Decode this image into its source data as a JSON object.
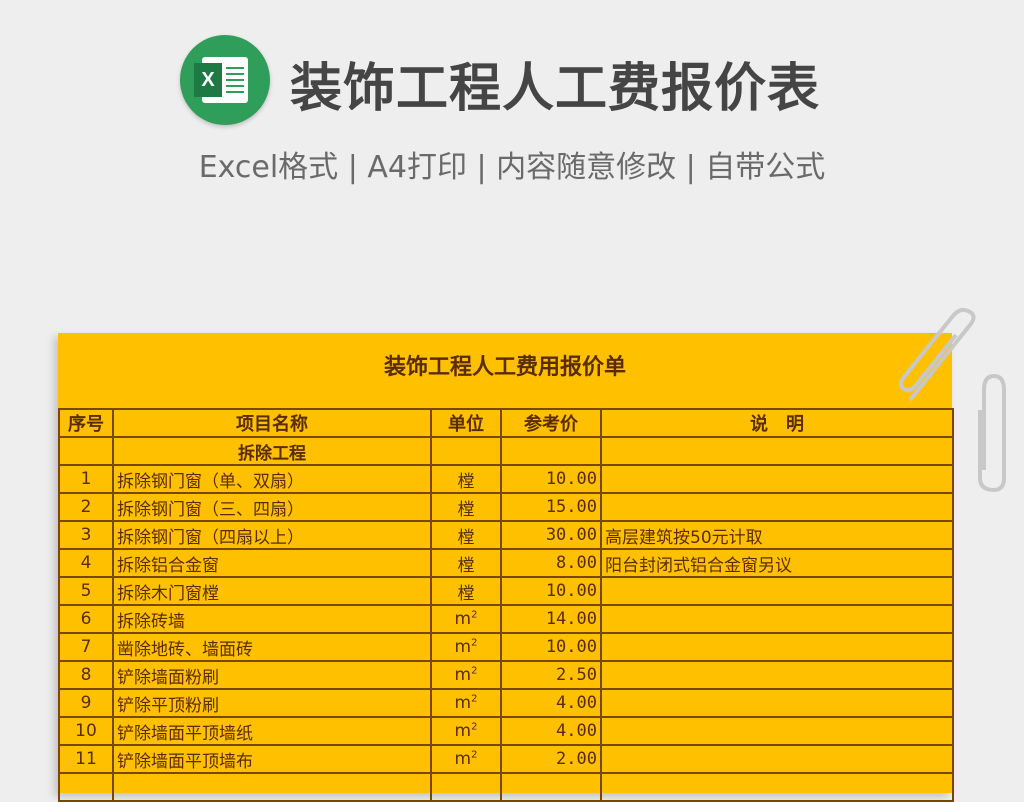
{
  "header": {
    "title": "装饰工程人工费报价表",
    "subtitle": "Excel格式 | A4打印 | 内容随意修改 | 自带公式",
    "logo": "excel-icon"
  },
  "sheet": {
    "title": "装饰工程人工费用报价单",
    "columns": [
      "序号",
      "项目名称",
      "单位",
      "参考价",
      "说　明"
    ],
    "section": "拆除工程",
    "rows": [
      {
        "no": "1",
        "name": "拆除钢门窗（单、双扇）",
        "unit": "樘",
        "price": "10.00",
        "note": ""
      },
      {
        "no": "2",
        "name": "拆除钢门窗（三、四扇）",
        "unit": "樘",
        "price": "15.00",
        "note": ""
      },
      {
        "no": "3",
        "name": "拆除钢门窗（四扇以上）",
        "unit": "樘",
        "price": "30.00",
        "note": "高层建筑按50元计取"
      },
      {
        "no": "4",
        "name": "拆除铝合金窗",
        "unit": "樘",
        "price": "8.00",
        "note": "阳台封闭式铝合金窗另议"
      },
      {
        "no": "5",
        "name": "拆除木门窗樘",
        "unit": "樘",
        "price": "10.00",
        "note": ""
      },
      {
        "no": "6",
        "name": "拆除砖墙",
        "unit": "m",
        "price": "14.00",
        "note": ""
      },
      {
        "no": "7",
        "name": "凿除地砖、墙面砖",
        "unit": "m",
        "price": "10.00",
        "note": ""
      },
      {
        "no": "8",
        "name": "铲除墙面粉刷",
        "unit": "m",
        "price": "2.50",
        "note": ""
      },
      {
        "no": "9",
        "name": "铲除平顶粉刷",
        "unit": "m",
        "price": "4.00",
        "note": ""
      },
      {
        "no": "10",
        "name": "铲除墙面平顶墙纸",
        "unit": "m",
        "price": "4.00",
        "note": ""
      },
      {
        "no": "11",
        "name": "铲除墙面平顶墙布",
        "unit": "m",
        "price": "2.00",
        "note": ""
      }
    ]
  },
  "colors": {
    "sheet": "#ffc000",
    "border": "#7a4700",
    "text": "#5a2d00",
    "logo": "#2e9e5a"
  }
}
